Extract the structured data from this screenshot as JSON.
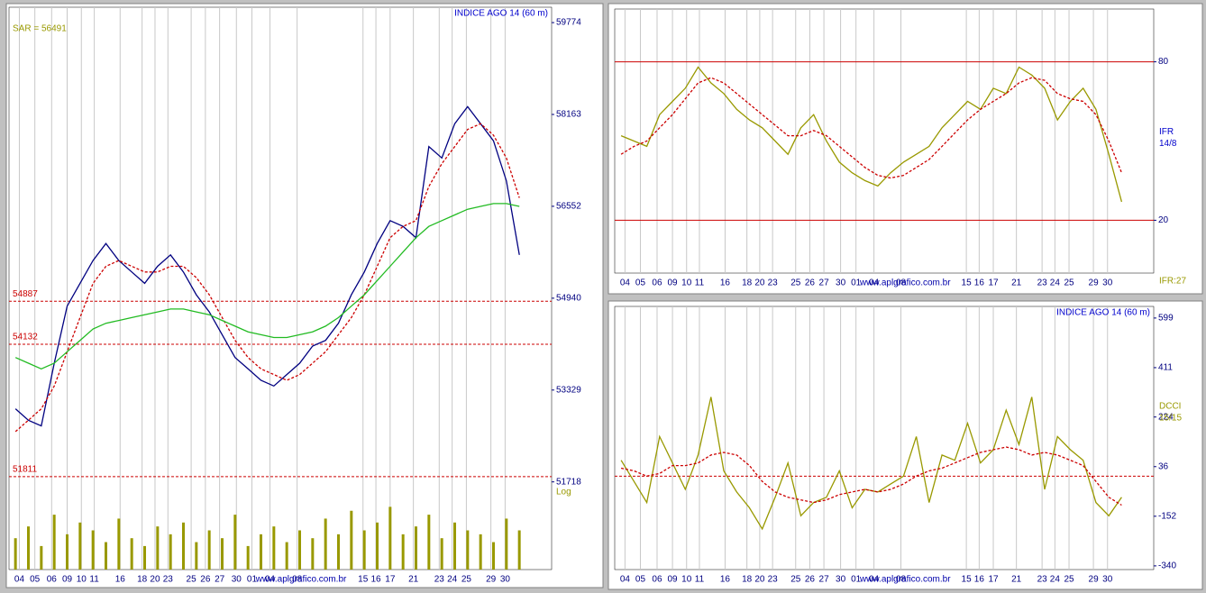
{
  "chart_data": [
    {
      "type": "line",
      "title": "INDICE AGO 14 (60 m)",
      "annotation": "SAR = 56491",
      "scale_label": "Log",
      "watermark": "www.aplgrafico.com.br",
      "x": [
        0,
        1,
        2,
        3,
        4,
        5,
        6,
        7,
        8,
        9,
        10,
        11,
        12,
        13,
        14,
        15,
        16,
        17,
        18,
        19,
        20,
        21,
        22,
        23,
        24,
        25,
        26,
        27,
        28,
        29,
        30,
        31,
        32,
        33,
        34,
        35,
        36,
        37,
        38,
        39
      ],
      "xlim": [
        -0.5,
        41.5
      ],
      "xticks": [
        {
          "value": 0.3,
          "label": "04"
        },
        {
          "value": 1.5,
          "label": "05"
        },
        {
          "value": 2.8,
          "label": "06"
        },
        {
          "value": 4.0,
          "label": "09"
        },
        {
          "value": 5.1,
          "label": "10"
        },
        {
          "value": 6.1,
          "label": "11"
        },
        {
          "value": 8.1,
          "label": "16"
        },
        {
          "value": 9.8,
          "label": "18"
        },
        {
          "value": 10.8,
          "label": "20"
        },
        {
          "value": 11.8,
          "label": "23"
        },
        {
          "value": 13.6,
          "label": "25"
        },
        {
          "value": 14.7,
          "label": "26"
        },
        {
          "value": 15.8,
          "label": "27"
        },
        {
          "value": 17.1,
          "label": "30"
        },
        {
          "value": 18.3,
          "label": "01"
        },
        {
          "value": 19.7,
          "label": "04"
        },
        {
          "value": 21.8,
          "label": "08"
        },
        {
          "value": 26.9,
          "label": "15"
        },
        {
          "value": 27.9,
          "label": "16"
        },
        {
          "value": 29.0,
          "label": "17"
        },
        {
          "value": 30.8,
          "label": "21"
        },
        {
          "value": 32.8,
          "label": "23"
        },
        {
          "value": 33.8,
          "label": "24"
        },
        {
          "value": 34.9,
          "label": "25"
        },
        {
          "value": 36.8,
          "label": "29"
        },
        {
          "value": 37.9,
          "label": "30"
        }
      ],
      "ylim": [
        50180,
        60044
      ],
      "yticks": [
        51718,
        53329,
        54940,
        56552,
        58163,
        59774
      ],
      "y2lim": [
        0,
        100
      ],
      "levels": [
        54887,
        54132,
        51811
      ],
      "level_color": "#cc0000",
      "level_dashed": true,
      "level_labels": true,
      "series": [
        {
          "color": "#000080",
          "dashed": false,
          "values": [
            53000,
            52800,
            52700,
            53800,
            54800,
            55200,
            55600,
            55900,
            55600,
            55400,
            55200,
            55500,
            55700,
            55400,
            55000,
            54700,
            54300,
            53900,
            53700,
            53500,
            53400,
            53600,
            53800,
            54100,
            54200,
            54500,
            55000,
            55400,
            55900,
            56300,
            56200,
            56000,
            57600,
            57400,
            58000,
            58300,
            58000,
            57700,
            57000,
            55700
          ]
        },
        {
          "color": "#cc0000",
          "dashed": true,
          "values": [
            52600,
            52800,
            53000,
            53400,
            54000,
            54600,
            55200,
            55500,
            55600,
            55500,
            55400,
            55400,
            55500,
            55500,
            55300,
            55000,
            54600,
            54200,
            53900,
            53700,
            53600,
            53500,
            53600,
            53800,
            54000,
            54300,
            54600,
            55000,
            55500,
            56000,
            56200,
            56300,
            56900,
            57300,
            57600,
            57900,
            58000,
            57800,
            57400,
            56700
          ]
        },
        {
          "color": "#22bb22",
          "dashed": false,
          "values": [
            53900,
            53800,
            53700,
            53800,
            54000,
            54200,
            54400,
            54500,
            54550,
            54600,
            54650,
            54700,
            54750,
            54750,
            54700,
            54650,
            54550,
            54450,
            54350,
            54300,
            54250,
            54250,
            54300,
            54350,
            54450,
            54600,
            54800,
            55000,
            55250,
            55500,
            55750,
            56000,
            56200,
            56300,
            56400,
            56500,
            56550,
            56600,
            56600,
            56550
          ]
        },
        {
          "color": "#999900",
          "axis": "y2",
          "values": [
            40,
            55,
            30,
            70,
            45,
            60,
            50,
            35,
            65,
            40,
            30,
            55,
            45,
            60,
            35,
            50,
            40,
            70,
            30,
            45,
            55,
            35,
            50,
            40,
            65,
            45,
            75,
            50,
            60,
            80,
            45,
            55,
            70,
            40,
            60,
            50,
            45,
            35,
            65,
            50
          ]
        }
      ]
    },
    {
      "type": "line",
      "side_labels": [
        "IFR",
        "14/8"
      ],
      "footer": "IFR:27",
      "watermark": "www.aplgrafico.com.br",
      "x": [
        0,
        1,
        2,
        3,
        4,
        5,
        6,
        7,
        8,
        9,
        10,
        11,
        12,
        13,
        14,
        15,
        16,
        17,
        18,
        19,
        20,
        21,
        22,
        23,
        24,
        25,
        26,
        27,
        28,
        29,
        30,
        31,
        32,
        33,
        34,
        35,
        36,
        37,
        38,
        39
      ],
      "xlim": [
        -0.5,
        41.5
      ],
      "xticks": [
        {
          "value": 0.3,
          "label": "04"
        },
        {
          "value": 1.5,
          "label": "05"
        },
        {
          "value": 2.8,
          "label": "06"
        },
        {
          "value": 4.0,
          "label": "09"
        },
        {
          "value": 5.1,
          "label": "10"
        },
        {
          "value": 6.1,
          "label": "11"
        },
        {
          "value": 8.1,
          "label": "16"
        },
        {
          "value": 9.8,
          "label": "18"
        },
        {
          "value": 10.8,
          "label": "20"
        },
        {
          "value": 11.8,
          "label": "23"
        },
        {
          "value": 13.6,
          "label": "25"
        },
        {
          "value": 14.7,
          "label": "26"
        },
        {
          "value": 15.8,
          "label": "27"
        },
        {
          "value": 17.1,
          "label": "30"
        },
        {
          "value": 18.3,
          "label": "01"
        },
        {
          "value": 19.7,
          "label": "04"
        },
        {
          "value": 21.8,
          "label": "08"
        },
        {
          "value": 26.9,
          "label": "15"
        },
        {
          "value": 27.9,
          "label": "16"
        },
        {
          "value": 29.0,
          "label": "17"
        },
        {
          "value": 30.8,
          "label": "21"
        },
        {
          "value": 32.8,
          "label": "23"
        },
        {
          "value": 33.8,
          "label": "24"
        },
        {
          "value": 34.9,
          "label": "25"
        },
        {
          "value": 36.8,
          "label": "29"
        },
        {
          "value": 37.9,
          "label": "30"
        }
      ],
      "ylim": [
        0,
        100
      ],
      "yticks": [
        80,
        20
      ],
      "levels": [
        80,
        20
      ],
      "level_color": "#cc0000",
      "level_dashed": false,
      "level_labels": false,
      "series": [
        {
          "color": "#999900",
          "dashed": false,
          "values": [
            52,
            50,
            48,
            60,
            65,
            70,
            78,
            72,
            68,
            62,
            58,
            55,
            50,
            45,
            55,
            60,
            50,
            42,
            38,
            35,
            33,
            38,
            42,
            45,
            48,
            55,
            60,
            65,
            62,
            70,
            68,
            78,
            75,
            70,
            58,
            65,
            70,
            62,
            45,
            27
          ]
        },
        {
          "color": "#cc0000",
          "dashed": true,
          "values": [
            45,
            48,
            50,
            55,
            60,
            66,
            72,
            74,
            72,
            68,
            64,
            60,
            56,
            52,
            52,
            54,
            52,
            48,
            44,
            40,
            37,
            36,
            37,
            40,
            43,
            48,
            53,
            58,
            62,
            65,
            68,
            72,
            74,
            73,
            68,
            66,
            65,
            60,
            50,
            38
          ]
        }
      ]
    },
    {
      "type": "line",
      "title": "INDICE AGO 14 (60 m)",
      "side_labels": [
        "DCCI",
        "15/15"
      ],
      "watermark": "www.aplgrafico.com.br",
      "x": [
        0,
        1,
        2,
        3,
        4,
        5,
        6,
        7,
        8,
        9,
        10,
        11,
        12,
        13,
        14,
        15,
        16,
        17,
        18,
        19,
        20,
        21,
        22,
        23,
        24,
        25,
        26,
        27,
        28,
        29,
        30,
        31,
        32,
        33,
        34,
        35,
        36,
        37,
        38,
        39
      ],
      "xlim": [
        -0.5,
        41.5
      ],
      "xticks": [
        {
          "value": 0.3,
          "label": "04"
        },
        {
          "value": 1.5,
          "label": "05"
        },
        {
          "value": 2.8,
          "label": "06"
        },
        {
          "value": 4.0,
          "label": "09"
        },
        {
          "value": 5.1,
          "label": "10"
        },
        {
          "value": 6.1,
          "label": "11"
        },
        {
          "value": 8.1,
          "label": "16"
        },
        {
          "value": 9.8,
          "label": "18"
        },
        {
          "value": 10.8,
          "label": "20"
        },
        {
          "value": 11.8,
          "label": "23"
        },
        {
          "value": 13.6,
          "label": "25"
        },
        {
          "value": 14.7,
          "label": "26"
        },
        {
          "value": 15.8,
          "label": "27"
        },
        {
          "value": 17.1,
          "label": "30"
        },
        {
          "value": 18.3,
          "label": "01"
        },
        {
          "value": 19.7,
          "label": "04"
        },
        {
          "value": 21.8,
          "label": "08"
        },
        {
          "value": 26.9,
          "label": "15"
        },
        {
          "value": 27.9,
          "label": "16"
        },
        {
          "value": 29.0,
          "label": "17"
        },
        {
          "value": 30.8,
          "label": "21"
        },
        {
          "value": 32.8,
          "label": "23"
        },
        {
          "value": 33.8,
          "label": "24"
        },
        {
          "value": 34.9,
          "label": "25"
        },
        {
          "value": 36.8,
          "label": "29"
        },
        {
          "value": 37.9,
          "label": "30"
        }
      ],
      "ylim": [
        -354,
        643
      ],
      "yticks": [
        599,
        411,
        224,
        36,
        -152,
        -340
      ],
      "levels": [
        0
      ],
      "level_color": "#cc0000",
      "level_dashed": true,
      "level_labels": false,
      "series": [
        {
          "color": "#999900",
          "dashed": false,
          "values": [
            60,
            -20,
            -100,
            150,
            50,
            -50,
            80,
            300,
            20,
            -60,
            -120,
            -200,
            -80,
            50,
            -150,
            -100,
            -80,
            20,
            -120,
            -50,
            -60,
            -30,
            0,
            150,
            -100,
            80,
            60,
            200,
            50,
            100,
            250,
            120,
            300,
            -50,
            150,
            100,
            60,
            -100,
            -150,
            -80
          ]
        },
        {
          "color": "#cc0000",
          "dashed": true,
          "values": [
            30,
            20,
            0,
            10,
            40,
            40,
            50,
            80,
            90,
            80,
            40,
            -20,
            -60,
            -80,
            -90,
            -100,
            -90,
            -70,
            -60,
            -50,
            -60,
            -50,
            -30,
            0,
            20,
            30,
            50,
            70,
            90,
            100,
            110,
            100,
            80,
            90,
            80,
            60,
            40,
            -20,
            -80,
            -110
          ]
        }
      ]
    }
  ]
}
